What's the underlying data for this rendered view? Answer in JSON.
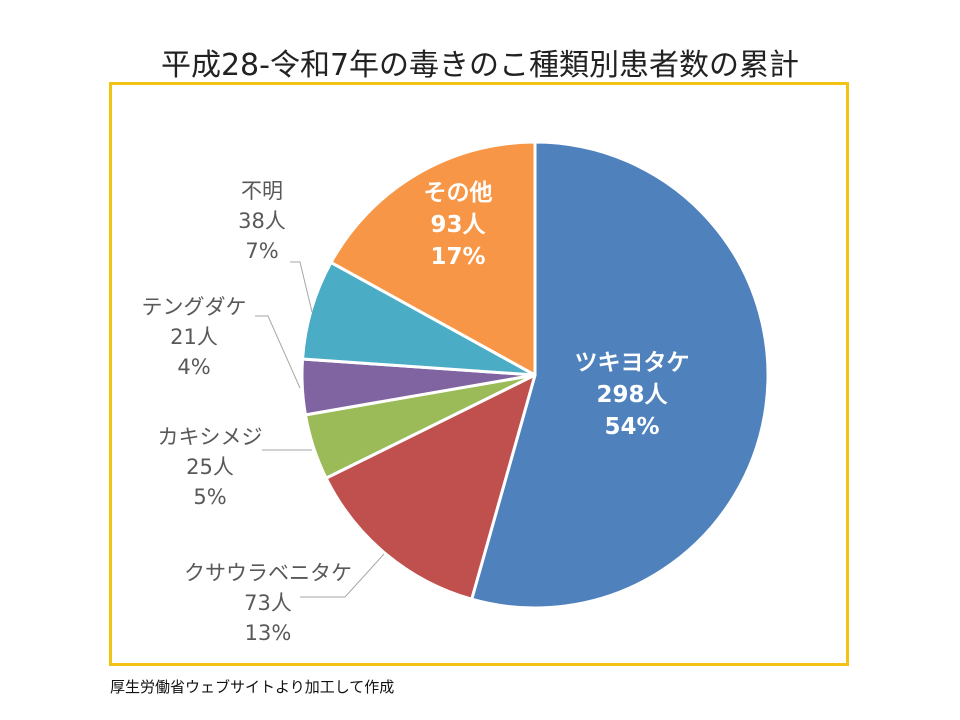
{
  "title": "平成28-令和7年の毒きのこ種類別患者数の累計",
  "source": "厚生労働省ウェブサイトより加工して作成",
  "chart_data": {
    "type": "pie",
    "title": "平成28-令和7年の毒きのこ種類別患者数の累計",
    "unit": "人",
    "slices": [
      {
        "name": "ツキヨタケ",
        "value": 298,
        "percent": "54%",
        "color": "#4f81bd"
      },
      {
        "name": "クサウラベニタケ",
        "value": 73,
        "percent": "13%",
        "color": "#c0504d"
      },
      {
        "name": "カキシメジ",
        "value": 25,
        "percent": "5%",
        "color": "#9bbb59"
      },
      {
        "name": "テングダケ",
        "value": 21,
        "percent": "4%",
        "color": "#8064a2"
      },
      {
        "name": "不明",
        "value": 38,
        "percent": "7%",
        "color": "#4bacc6"
      },
      {
        "name": "その他",
        "value": 93,
        "percent": "17%",
        "color": "#f79646"
      }
    ],
    "data_labels": [
      {
        "name": "ツキヨタケ",
        "count": "298人",
        "percent": "54%"
      },
      {
        "name": "クサウラベニタケ",
        "count": "73人",
        "percent": "13%"
      },
      {
        "name": "カキシメジ",
        "count": "25人",
        "percent": "5%"
      },
      {
        "name": "テングダケ",
        "count": "21人",
        "percent": "4%"
      },
      {
        "name": "不明",
        "count": "38人",
        "percent": "7%"
      },
      {
        "name": "その他",
        "count": "93人",
        "percent": "17%"
      }
    ],
    "start": "12 o'clock, clockwise",
    "frame_color": "#f2c314"
  }
}
